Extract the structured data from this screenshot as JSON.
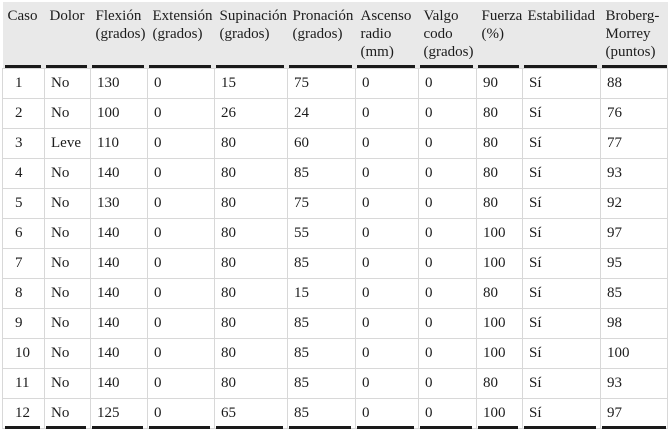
{
  "colors": {
    "header_bg": "#e9e9e9",
    "heavy_rule": "#1a1a1a",
    "grid_line": "#d8d8d8",
    "text_color": "#1c1c1c",
    "page_bg": "#ffffff"
  },
  "table": {
    "columns": [
      {
        "lines": [
          "Caso"
        ]
      },
      {
        "lines": [
          "Dolor"
        ]
      },
      {
        "lines": [
          "Flexión",
          "(grados)"
        ]
      },
      {
        "lines": [
          "Extensión",
          "(grados)"
        ]
      },
      {
        "lines": [
          "Supinación",
          "(grados)"
        ]
      },
      {
        "lines": [
          "Pronación",
          "(grados)"
        ]
      },
      {
        "lines": [
          "Ascenso",
          "radio",
          "(mm)"
        ]
      },
      {
        "lines": [
          "Valgo",
          "codo",
          "(grados)"
        ]
      },
      {
        "lines": [
          "Fuerza",
          "(%)"
        ]
      },
      {
        "lines": [
          "Estabilidad"
        ]
      },
      {
        "lines": [
          "Broberg-",
          "Morrey",
          "(puntos)"
        ]
      }
    ],
    "rows": [
      [
        "1",
        "No",
        "130",
        "0",
        "15",
        "75",
        "0",
        "0",
        "90",
        "Sí",
        "88"
      ],
      [
        "2",
        "No",
        "100",
        "0",
        "26",
        "24",
        "0",
        "0",
        "80",
        "Sí",
        "76"
      ],
      [
        "3",
        "Leve",
        "110",
        "0",
        "80",
        "60",
        "0",
        "0",
        "80",
        "Sí",
        "77"
      ],
      [
        "4",
        "No",
        "140",
        "0",
        "80",
        "85",
        "0",
        "0",
        "80",
        "Sí",
        "93"
      ],
      [
        "5",
        "No",
        "130",
        "0",
        "80",
        "75",
        "0",
        "0",
        "80",
        "Sí",
        "92"
      ],
      [
        "6",
        "No",
        "140",
        "0",
        "80",
        "55",
        "0",
        "0",
        "100",
        "Sí",
        "97"
      ],
      [
        "7",
        "No",
        "140",
        "0",
        "80",
        "85",
        "0",
        "0",
        "100",
        "Sí",
        "95"
      ],
      [
        "8",
        "No",
        "140",
        "0",
        "80",
        "15",
        "0",
        "0",
        "80",
        "Sí",
        "85"
      ],
      [
        "9",
        "No",
        "140",
        "0",
        "80",
        "85",
        "0",
        "0",
        "100",
        "Sí",
        "98"
      ],
      [
        "10",
        "No",
        "140",
        "0",
        "80",
        "85",
        "0",
        "0",
        "100",
        "Sí",
        "100"
      ],
      [
        "11",
        "No",
        "140",
        "0",
        "80",
        "85",
        "0",
        "0",
        "80",
        "Sí",
        "93"
      ],
      [
        "12",
        "No",
        "125",
        "0",
        "65",
        "85",
        "0",
        "0",
        "100",
        "Sí",
        "97"
      ]
    ]
  }
}
